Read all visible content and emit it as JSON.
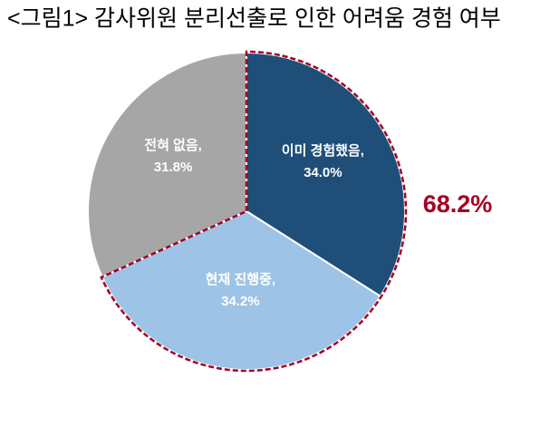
{
  "chart_data": {
    "type": "pie",
    "title": "<그림1> 감사위원 분리선출로 인한 어려움 경험 여부",
    "categories": [
      "이미 경험했음,",
      "현재 진행중,",
      "전혀 없음,"
    ],
    "values": [
      34.0,
      34.2,
      31.8
    ],
    "value_labels": [
      "34.0%",
      "34.2%",
      "31.8%"
    ],
    "colors": [
      "#1f4e79",
      "#9dc3e6",
      "#a6a6a6"
    ],
    "annotation": "68.2%",
    "annotation_color": "#a50021"
  }
}
